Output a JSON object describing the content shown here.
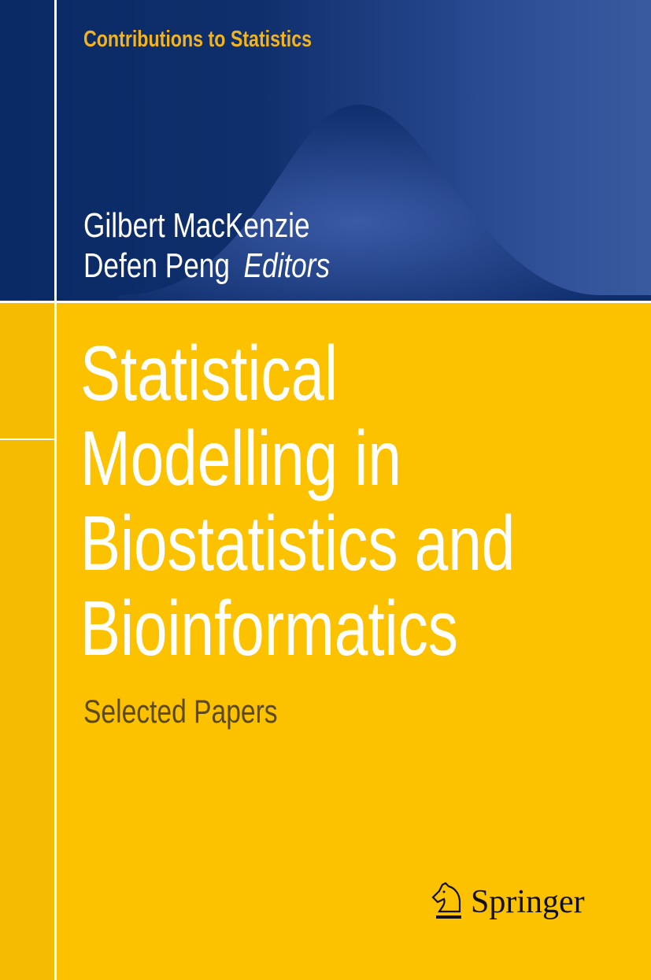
{
  "series": "Contributions to Statistics",
  "editors": [
    "Gilbert MacKenzie",
    "Defen Peng"
  ],
  "editors_label": "Editors",
  "title_lines": [
    "Statistical",
    "Modelling in",
    "Biostatistics and",
    "Bioinformatics"
  ],
  "subtitle": "Selected Papers",
  "publisher": "Springer",
  "colors": {
    "blue": "#0f2f6c",
    "yellow": "#fcc200",
    "series_text": "#f0b323"
  }
}
